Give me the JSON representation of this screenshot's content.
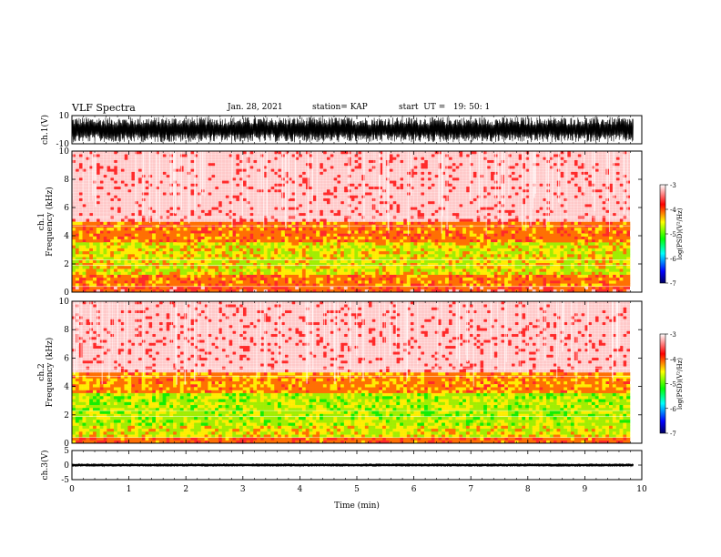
{
  "header": {
    "title": "VLF Spectra",
    "date": "Jan. 28, 2021",
    "station": "station= KAP",
    "start_ut": "start  UT =   19: 50: 1"
  },
  "chart_data": [
    {
      "type": "line",
      "panel": "ch1-waveform",
      "ylabel": "ch.1(V)",
      "ylim": [
        -10,
        10
      ],
      "yticks": [
        "10",
        "-10"
      ],
      "x_range_min": [
        0,
        9.85
      ],
      "y_envelope": [
        -9,
        9
      ]
    },
    {
      "type": "heatmap",
      "panel": "ch1-spectrogram",
      "ylabel": "ch.1\nFrequency (kHz)",
      "ylim": [
        0,
        10
      ],
      "yticks": [
        "0",
        "2",
        "4",
        "6",
        "8",
        "10"
      ],
      "colorbar": {
        "label": "log(PSD)(V²/Hz)",
        "range": [
          -7,
          -3
        ],
        "ticks": [
          "-3",
          "-4",
          "-5",
          "-6",
          "-7"
        ],
        "colors": [
          "#000080",
          "#0000ff",
          "#00ffff",
          "#00ff00",
          "#ffff00",
          "#ff0000",
          "#ffffff"
        ]
      },
      "bands_khz": [
        {
          "from": 0,
          "to": 0.5,
          "level": -3.9
        },
        {
          "from": 0.5,
          "to": 1.2,
          "level": -4.1
        },
        {
          "from": 1.2,
          "to": 3.5,
          "level": -4.6
        },
        {
          "from": 3.5,
          "to": 5.0,
          "level": -4.1
        },
        {
          "from": 5.0,
          "to": 10.0,
          "level": -3.3
        }
      ]
    },
    {
      "type": "heatmap",
      "panel": "ch2-spectrogram",
      "ylabel": "ch.2\nFrequency (kHz)",
      "ylim": [
        0,
        10
      ],
      "yticks": [
        "0",
        "2",
        "4",
        "6",
        "8",
        "10"
      ],
      "colorbar": {
        "label": "log(PSD)(V²/Hz)",
        "range": [
          -7,
          -3
        ],
        "ticks": [
          "-3",
          "-4",
          "-5",
          "-6",
          "-7"
        ],
        "colors": [
          "#000080",
          "#0000ff",
          "#00ffff",
          "#00ff00",
          "#ffff00",
          "#ff0000",
          "#ffffff"
        ]
      },
      "bands_khz": [
        {
          "from": 0,
          "to": 0.5,
          "level": -4.0
        },
        {
          "from": 0.5,
          "to": 1.2,
          "level": -4.6
        },
        {
          "from": 1.2,
          "to": 3.5,
          "level": -4.8
        },
        {
          "from": 3.5,
          "to": 5.0,
          "level": -4.2
        },
        {
          "from": 5.0,
          "to": 10.0,
          "level": -3.3
        }
      ]
    },
    {
      "type": "line",
      "panel": "ch3-waveform",
      "ylabel": "ch.3(V)",
      "ylim": [
        -5,
        5
      ],
      "yticks": [
        "5",
        "0",
        "-5"
      ],
      "x_range_min": [
        0,
        9.85
      ],
      "y_envelope": [
        -0.5,
        0.5
      ],
      "y_center": 0
    }
  ],
  "x_axis": {
    "xlabel": "Time (min)",
    "xlim": [
      0,
      10
    ],
    "xticks": [
      "0",
      "1",
      "2",
      "3",
      "4",
      "5",
      "6",
      "7",
      "8",
      "9",
      "10"
    ]
  }
}
